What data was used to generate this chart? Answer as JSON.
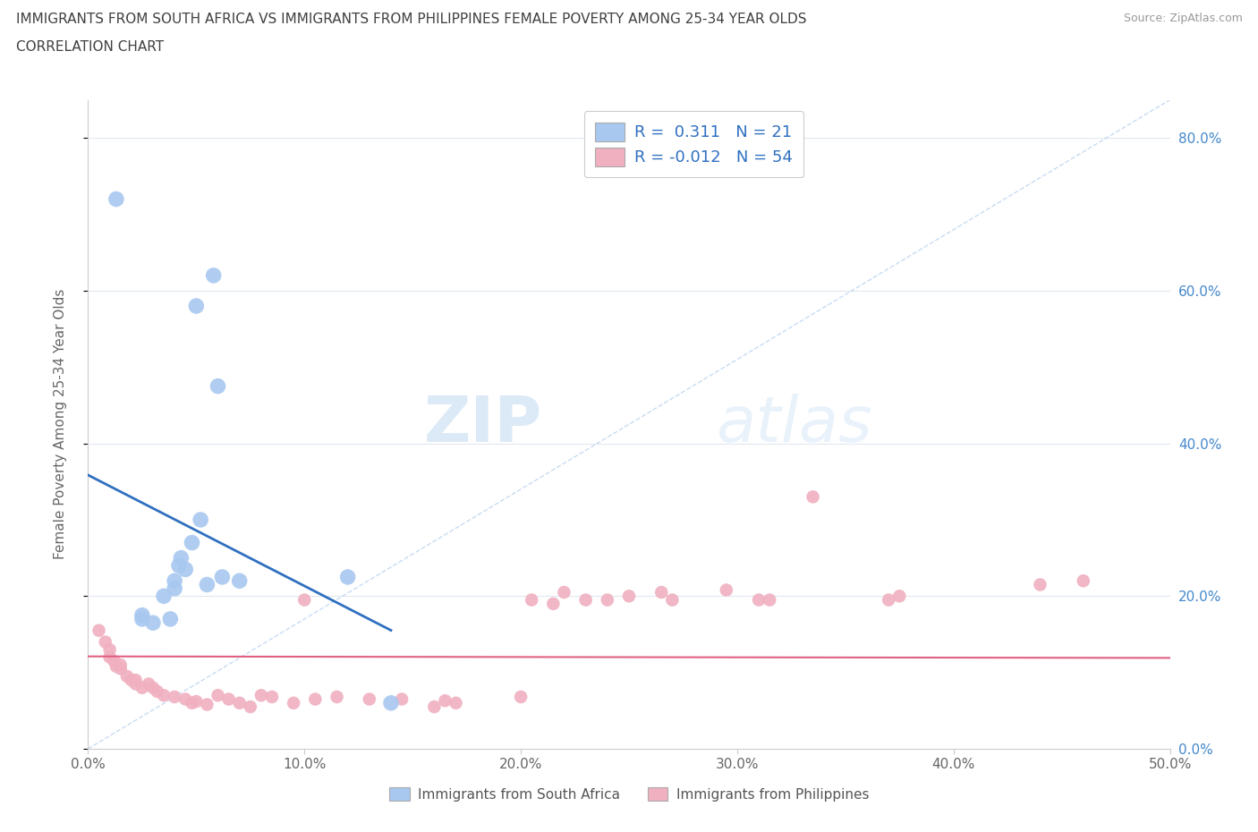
{
  "title_line1": "IMMIGRANTS FROM SOUTH AFRICA VS IMMIGRANTS FROM PHILIPPINES FEMALE POVERTY AMONG 25-34 YEAR OLDS",
  "title_line2": "CORRELATION CHART",
  "source": "Source: ZipAtlas.com",
  "ylabel": "Female Poverty Among 25-34 Year Olds",
  "xlim": [
    0.0,
    0.5
  ],
  "ylim": [
    0.0,
    0.85
  ],
  "yticks": [
    0.0,
    0.2,
    0.4,
    0.6,
    0.8
  ],
  "xticks": [
    0.0,
    0.1,
    0.2,
    0.3,
    0.4,
    0.5
  ],
  "blue_R": 0.311,
  "blue_N": 21,
  "pink_R": -0.012,
  "pink_N": 54,
  "blue_color": "#a8c8f0",
  "blue_line_color": "#3070c0",
  "pink_color": "#f0b0c0",
  "pink_line_color": "#e06080",
  "watermark_zip": "ZIP",
  "watermark_atlas": "atlas",
  "blue_scatter_x": [
    0.013,
    0.025,
    0.025,
    0.03,
    0.035,
    0.038,
    0.04,
    0.04,
    0.042,
    0.043,
    0.045,
    0.048,
    0.05,
    0.052,
    0.055,
    0.058,
    0.06,
    0.062,
    0.07,
    0.12,
    0.14
  ],
  "blue_scatter_y": [
    0.72,
    0.175,
    0.17,
    0.165,
    0.2,
    0.17,
    0.21,
    0.22,
    0.24,
    0.25,
    0.235,
    0.27,
    0.58,
    0.3,
    0.215,
    0.62,
    0.475,
    0.225,
    0.22,
    0.225,
    0.06
  ],
  "pink_scatter_x": [
    0.005,
    0.008,
    0.01,
    0.01,
    0.012,
    0.013,
    0.015,
    0.015,
    0.018,
    0.02,
    0.022,
    0.022,
    0.025,
    0.028,
    0.03,
    0.032,
    0.035,
    0.04,
    0.045,
    0.048,
    0.05,
    0.055,
    0.06,
    0.065,
    0.07,
    0.075,
    0.08,
    0.085,
    0.095,
    0.1,
    0.105,
    0.115,
    0.13,
    0.145,
    0.16,
    0.165,
    0.17,
    0.2,
    0.205,
    0.215,
    0.22,
    0.23,
    0.24,
    0.25,
    0.265,
    0.27,
    0.295,
    0.31,
    0.315,
    0.335,
    0.37,
    0.375,
    0.44,
    0.46
  ],
  "pink_scatter_y": [
    0.155,
    0.14,
    0.12,
    0.13,
    0.115,
    0.108,
    0.105,
    0.11,
    0.095,
    0.09,
    0.09,
    0.085,
    0.08,
    0.085,
    0.08,
    0.075,
    0.07,
    0.068,
    0.065,
    0.06,
    0.062,
    0.058,
    0.07,
    0.065,
    0.06,
    0.055,
    0.07,
    0.068,
    0.06,
    0.195,
    0.065,
    0.068,
    0.065,
    0.065,
    0.055,
    0.063,
    0.06,
    0.068,
    0.195,
    0.19,
    0.205,
    0.195,
    0.195,
    0.2,
    0.205,
    0.195,
    0.208,
    0.195,
    0.195,
    0.33,
    0.195,
    0.2,
    0.215,
    0.22
  ],
  "grid_color": "#e0e8f0",
  "background_color": "#ffffff",
  "title_color": "#404040",
  "right_tick_color": "#4488cc"
}
